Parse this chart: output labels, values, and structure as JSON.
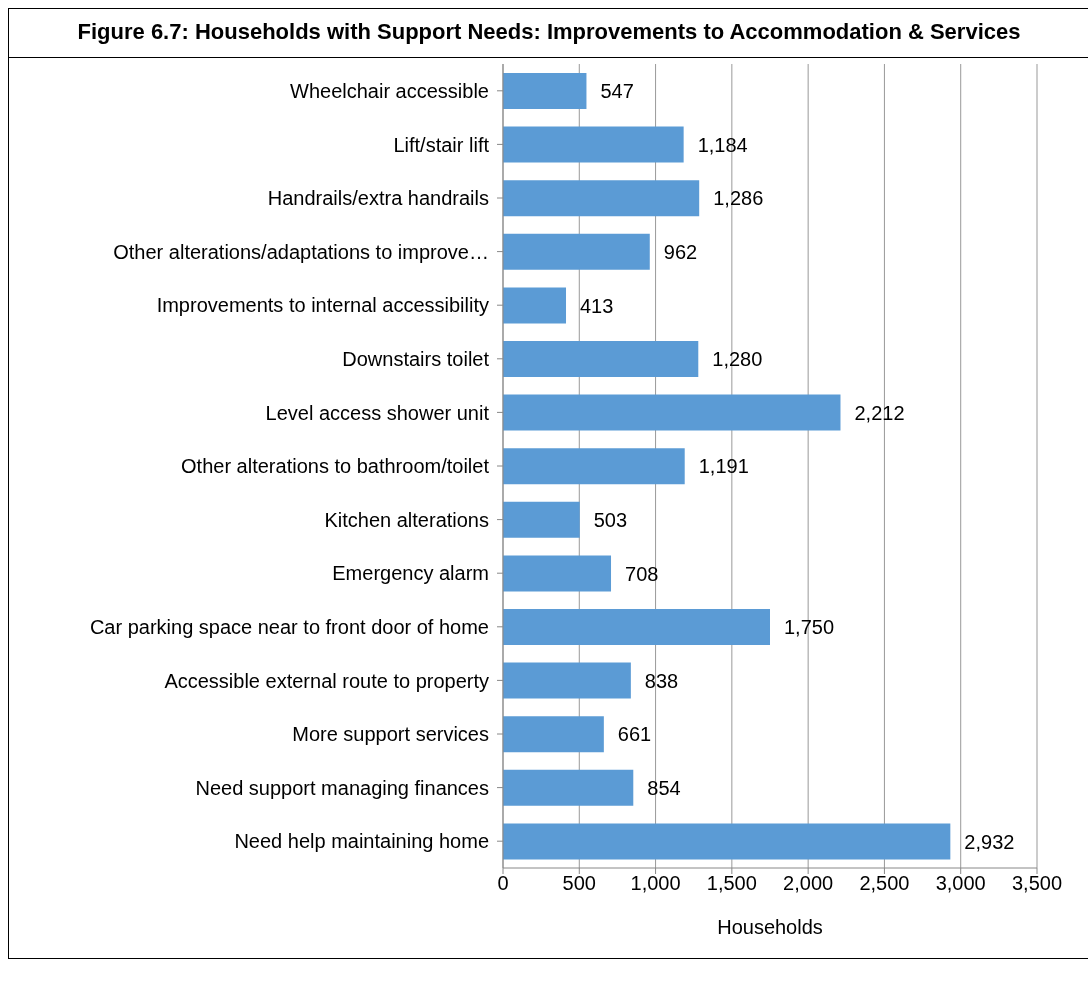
{
  "chart_data": {
    "type": "bar",
    "orientation": "horizontal",
    "title": "Figure 6.7: Households with Support Needs: Improvements to Accommodation & Services",
    "xlabel": "Households",
    "categories": [
      "Wheelchair accessible",
      "Lift/stair lift",
      "Handrails/extra handrails",
      "Other alterations/adaptations to improve…",
      "Improvements to internal accessibility",
      "Downstairs toilet",
      "Level access shower unit",
      "Other alterations to bathroom/toilet",
      "Kitchen alterations",
      "Emergency alarm",
      "Car parking space near to front door of home",
      "Accessible external route to property",
      "More support services",
      "Need support managing finances",
      "Need help maintaining home"
    ],
    "values": [
      547,
      1184,
      1286,
      962,
      413,
      1280,
      2212,
      1191,
      503,
      708,
      1750,
      838,
      661,
      854,
      2932
    ],
    "value_labels": [
      "547",
      "1,184",
      "1,286",
      "962",
      "413",
      "1,280",
      "2,212",
      "1,191",
      "503",
      "708",
      "1,750",
      "838",
      "661",
      "854",
      "2,932"
    ],
    "color": "#5b9bd5",
    "xlim": [
      0,
      3500
    ],
    "xticks": [
      0,
      500,
      {
        "value": 1000,
        "label": "1,000"
      },
      {
        "value": 1500,
        "label": "1,500"
      },
      {
        "value": 2000,
        "label": "2,000"
      },
      {
        "value": 2500,
        "label": "2,500"
      },
      {
        "value": 3000,
        "label": "3,000"
      },
      {
        "value": 3500,
        "label": "3,500"
      }
    ],
    "grid": "x",
    "legend": false
  }
}
